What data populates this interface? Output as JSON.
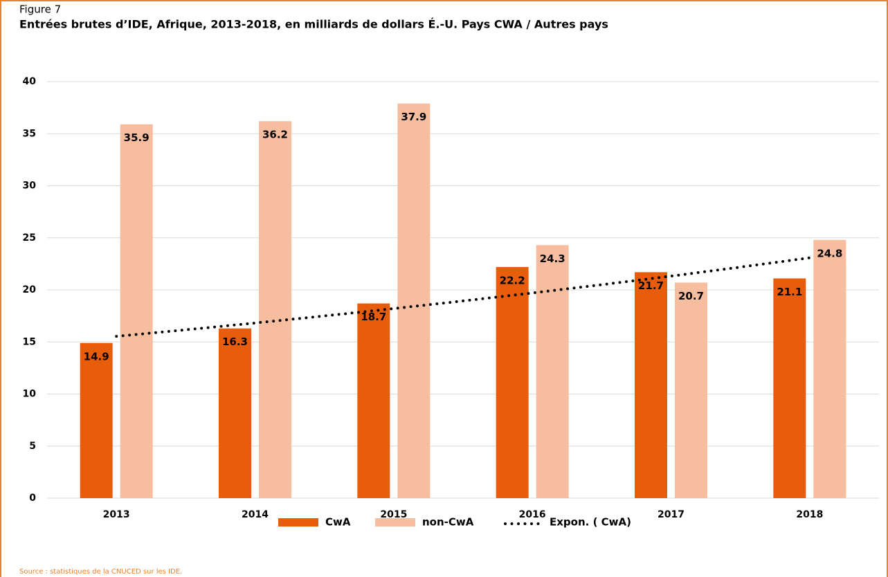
{
  "figure_label": "Figure 7",
  "source": "Source : statistiques de la CNUCED sur les IDE.",
  "chart_data": {
    "type": "bar",
    "title": "Entrées brutes d’IDE, Afrique, 2013-2018, en milliards de dollars É.-U. Pays CWA / Autres pays",
    "categories": [
      "2013",
      "2014",
      "2015",
      "2016",
      "2017",
      "2018"
    ],
    "series": [
      {
        "name": "CwA",
        "color": "#e85d0c",
        "values": [
          14.9,
          16.3,
          18.7,
          22.2,
          21.7,
          21.1
        ]
      },
      {
        "name": "non-CwA",
        "color": "#f7bd9f",
        "values": [
          35.9,
          36.2,
          37.9,
          24.3,
          20.7,
          24.8
        ]
      }
    ],
    "trendline": {
      "name": "Expon. ( CwA)",
      "kind": "exponential",
      "color": "#000000"
    },
    "ylim": [
      0,
      40
    ],
    "yticks": [
      0,
      5,
      10,
      15,
      20,
      25,
      30,
      35,
      40
    ],
    "grid": true,
    "legend": "bottom"
  }
}
